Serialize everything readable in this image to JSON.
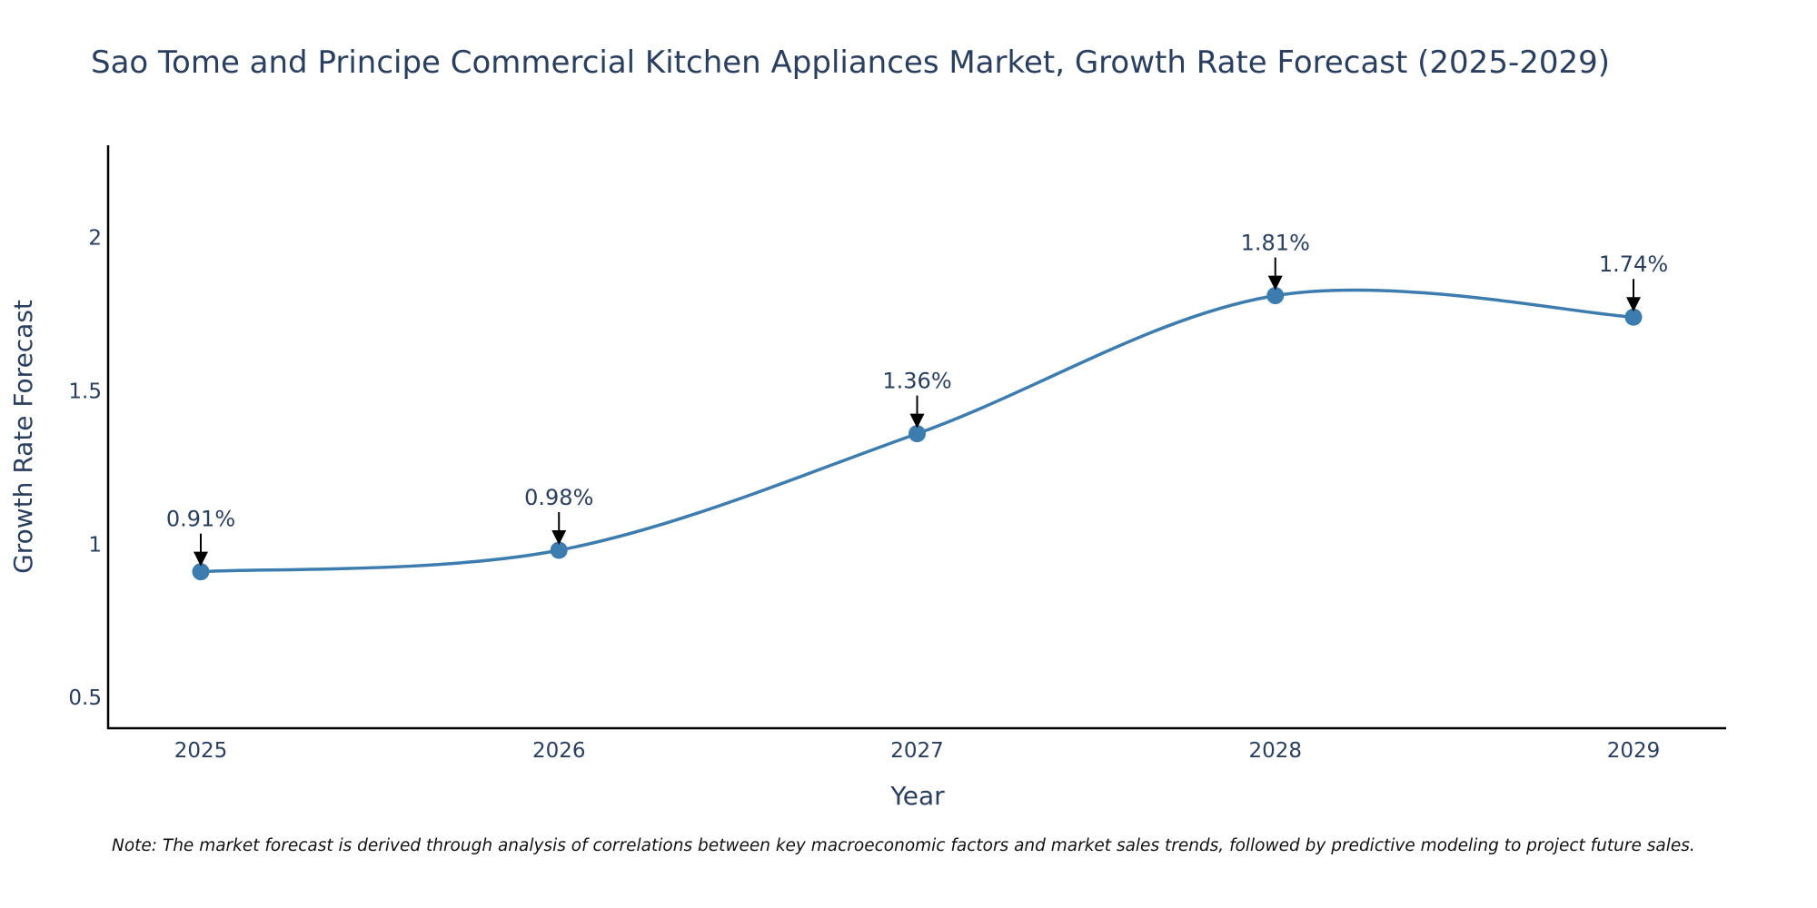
{
  "chart_data": {
    "type": "line",
    "title": "Sao Tome and Principe Commercial Kitchen Appliances Market, Growth Rate Forecast (2025-2029)",
    "xlabel": "Year",
    "ylabel": "Growth Rate Forecast",
    "categories": [
      "2025",
      "2026",
      "2027",
      "2028",
      "2029"
    ],
    "series": [
      {
        "name": "Growth Rate Forecast",
        "values": [
          0.91,
          0.98,
          1.36,
          1.81,
          1.74
        ]
      }
    ],
    "data_labels": [
      "0.91%",
      "0.98%",
      "1.36%",
      "1.81%",
      "1.74%"
    ],
    "y_ticks": [
      0.5,
      1,
      1.5,
      2
    ],
    "y_tick_labels": [
      "0.5",
      "1",
      "1.5",
      "2"
    ],
    "ylim": [
      0.4,
      2.3
    ],
    "line_color": "#3d7caf",
    "marker_color": "#3d7caf",
    "arrow_color": "#000000",
    "smooth": true
  },
  "note": "Note: The market forecast is derived through analysis of correlations between key macroeconomic factors and market sales trends, followed by predictive modeling to project future sales."
}
